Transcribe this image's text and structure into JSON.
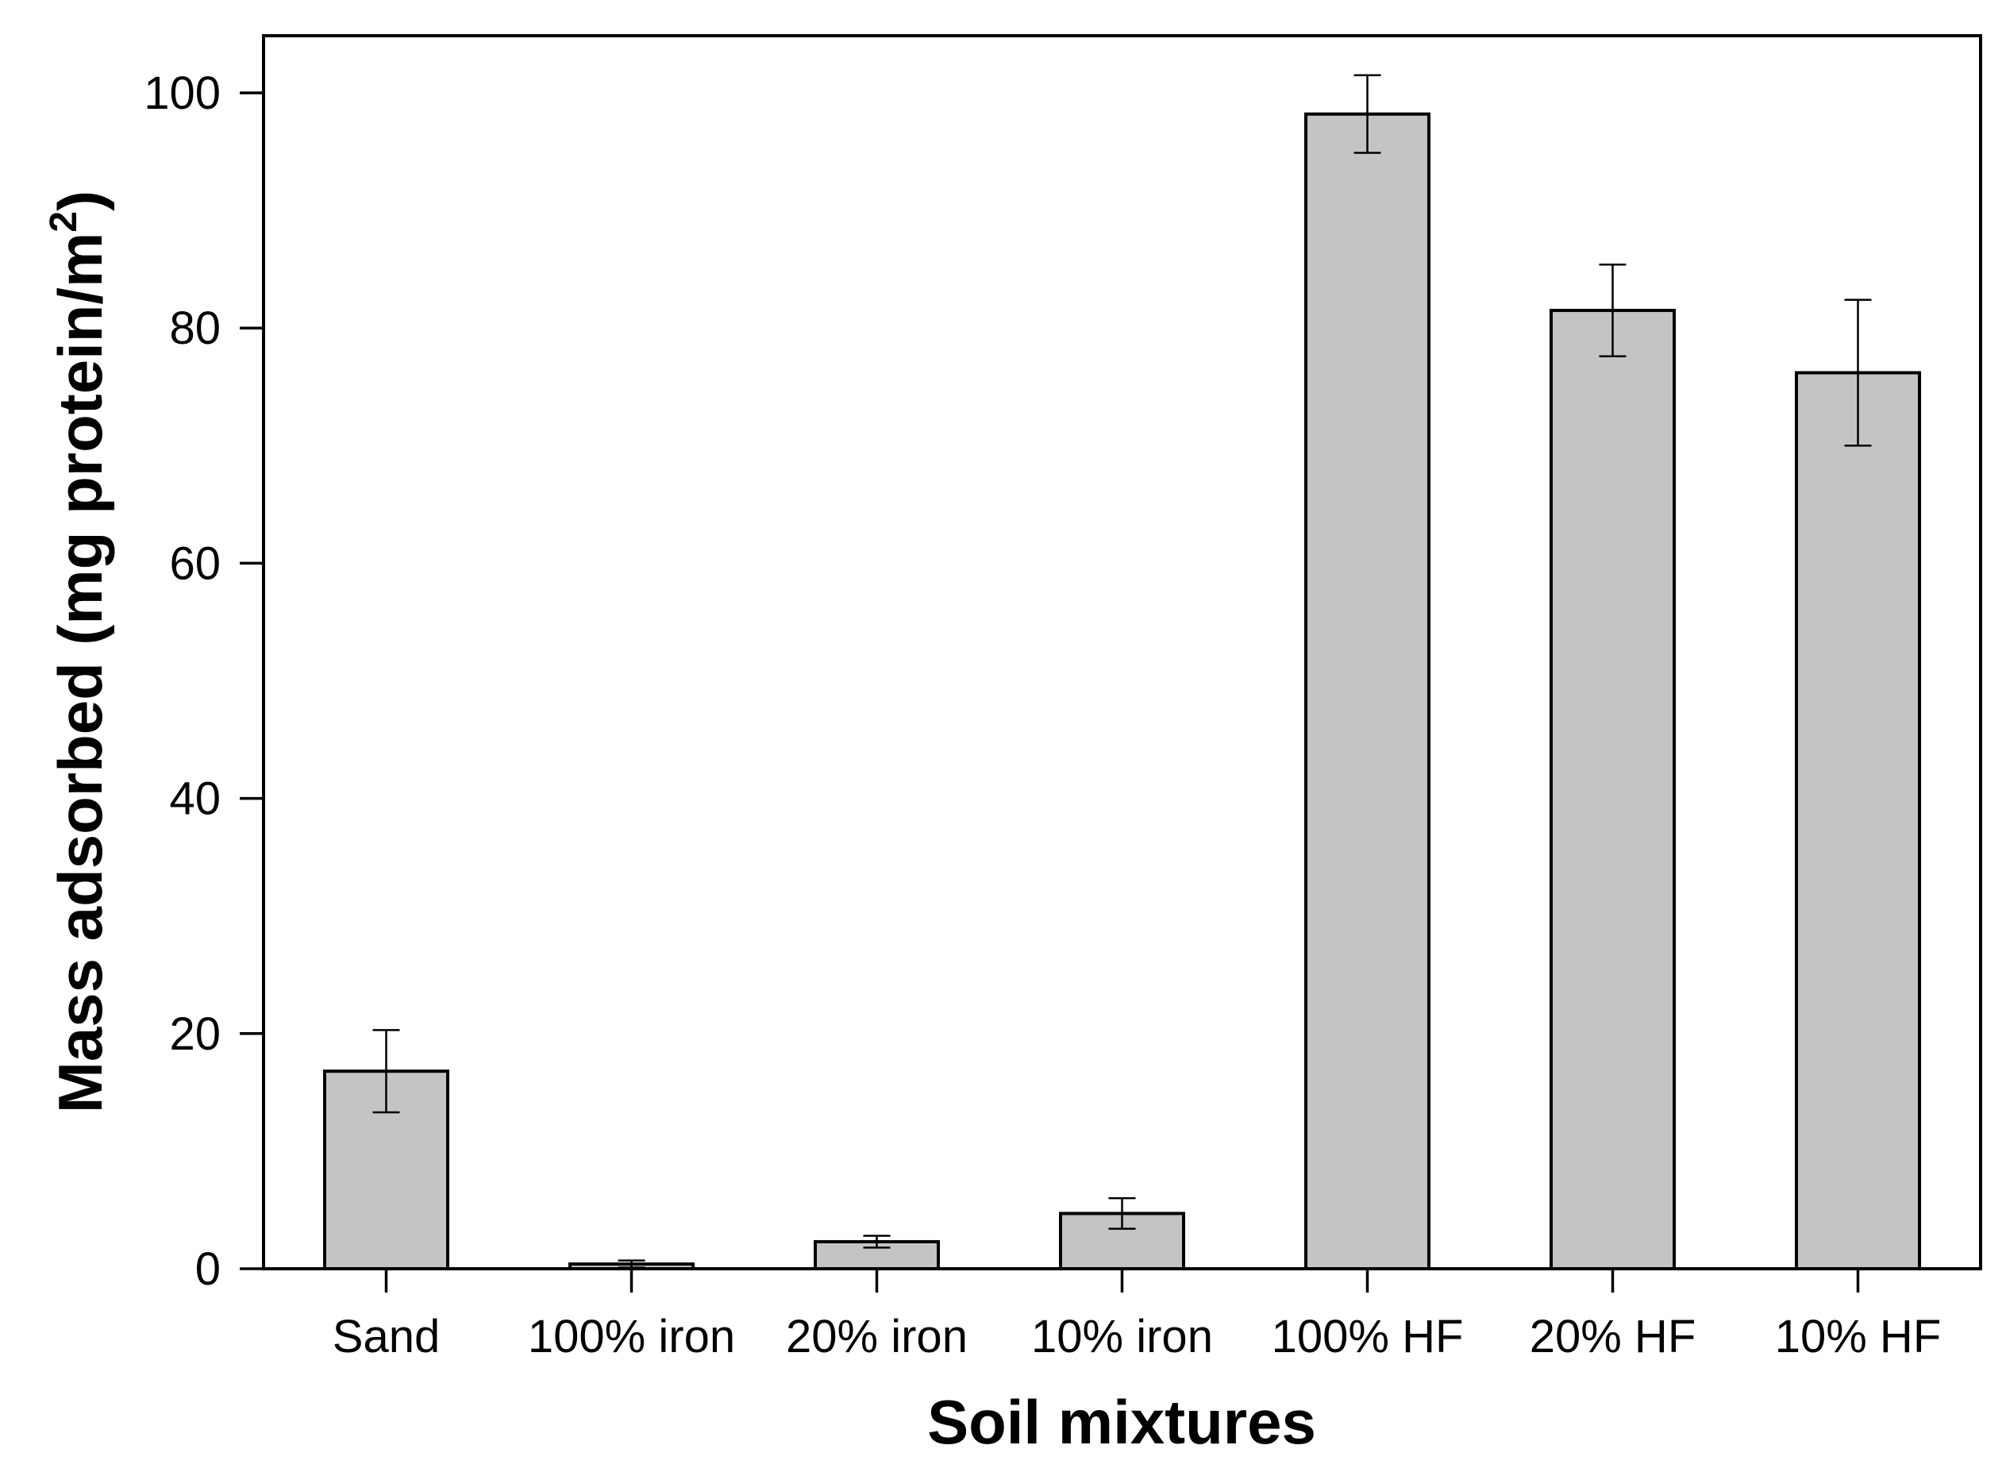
{
  "chart_data": {
    "type": "bar",
    "categories": [
      "Sand",
      "100% iron",
      "20% iron",
      "10% iron",
      "100% HF",
      "20% HF",
      "10% HF"
    ],
    "values": [
      16.8,
      0.4,
      2.3,
      4.7,
      98.2,
      81.5,
      76.2
    ],
    "errors": [
      3.5,
      0.3,
      0.5,
      1.3,
      3.3,
      3.9,
      6.2
    ],
    "xlabel": "Soil mixtures",
    "ylabel": "Mass adsorbed (mg protein/m",
    "ylabel_superscript": "2",
    "ylabel_close": ")",
    "ylim": [
      0,
      105
    ],
    "yticks": [
      "0",
      "20",
      "40",
      "60",
      "80",
      "100"
    ],
    "grid": false,
    "bar_color": "#c4c4c4",
    "edge_color": "#000000"
  }
}
